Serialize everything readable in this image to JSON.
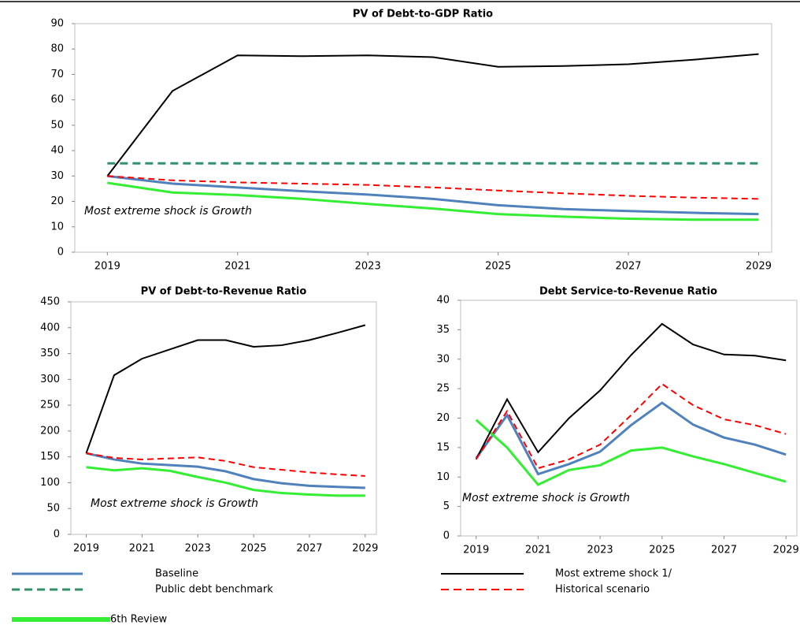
{
  "chart_data": [
    {
      "type": "line",
      "title": "PV of Debt-to-GDP  Ratio",
      "annotation": "Most extreme  shock is Growth",
      "x": [
        2019,
        2020,
        2021,
        2022,
        2023,
        2024,
        2025,
        2026,
        2027,
        2028,
        2029
      ],
      "xlim": [
        2018.5,
        2029.2
      ],
      "xticks": [
        2019,
        2021,
        2023,
        2025,
        2027,
        2029
      ],
      "ylim": [
        0,
        90
      ],
      "yticks": [
        0,
        10,
        20,
        30,
        40,
        50,
        60,
        70,
        80,
        90
      ],
      "series": [
        {
          "name": "Baseline",
          "color": "#4f81bd",
          "linewidth": 3,
          "dashed": false,
          "values": [
            30,
            27,
            25.5,
            24,
            22.7,
            21,
            18.5,
            17,
            16.2,
            15.5,
            15
          ]
        },
        {
          "name": "Public debt benchmark",
          "color": "#31926a",
          "linewidth": 3,
          "dashed": true,
          "values": [
            35,
            35,
            35,
            35,
            35,
            35,
            35,
            35,
            35,
            35,
            35
          ]
        },
        {
          "name": "6th Review",
          "color": "#33ee33",
          "linewidth": 3,
          "dashed": false,
          "values": [
            27.3,
            23.5,
            22.5,
            21,
            19,
            17.2,
            15,
            14,
            13.2,
            12.8,
            12.8
          ]
        },
        {
          "name": "Most extreme shock 1/",
          "color": "#000000",
          "linewidth": 2,
          "dashed": false,
          "values": [
            30,
            63.5,
            77.5,
            77.2,
            77.5,
            76.8,
            73,
            73.3,
            74,
            75.8,
            78
          ]
        },
        {
          "name": "Historical scenario",
          "color": "#ff0000",
          "linewidth": 2,
          "dashed": true,
          "values": [
            30,
            28.3,
            27.5,
            27,
            26.5,
            25.5,
            24.3,
            23.2,
            22.2,
            21.5,
            21
          ]
        }
      ]
    },
    {
      "type": "line",
      "title": "PV of Debt-to-Revenue  Ratio",
      "annotation": "Most extreme  shock is Growth",
      "x": [
        2019,
        2020,
        2021,
        2022,
        2023,
        2024,
        2025,
        2026,
        2027,
        2028,
        2029
      ],
      "xlim": [
        2018.45,
        2029.4
      ],
      "xticks": [
        2019,
        2021,
        2023,
        2025,
        2027,
        2029
      ],
      "ylim": [
        0,
        450
      ],
      "yticks": [
        0,
        50,
        100,
        150,
        200,
        250,
        300,
        350,
        400,
        450
      ],
      "series": [
        {
          "name": "Baseline",
          "color": "#4f81bd",
          "linewidth": 3,
          "dashed": false,
          "values": [
            157,
            145,
            137,
            134,
            131,
            122,
            107,
            99,
            94,
            92,
            90
          ]
        },
        {
          "name": "6th Review",
          "color": "#33ee33",
          "linewidth": 3,
          "dashed": false,
          "values": [
            130,
            124,
            128,
            123,
            111,
            100,
            86,
            80,
            77,
            75,
            75
          ]
        },
        {
          "name": "Most extreme shock 1/",
          "color": "#000000",
          "linewidth": 2,
          "dashed": false,
          "values": [
            157,
            308,
            340,
            358,
            376,
            376,
            363,
            366,
            376,
            390,
            405
          ]
        },
        {
          "name": "Historical scenario",
          "color": "#ff0000",
          "linewidth": 2,
          "dashed": true,
          "values": [
            157,
            148,
            145,
            147,
            149,
            142,
            130,
            125,
            120,
            116,
            113
          ]
        }
      ]
    },
    {
      "type": "line",
      "title": "Debt Service-to-Revenue  Ratio",
      "annotation": "Most extreme  shock is Growth",
      "x": [
        2019,
        2020,
        2021,
        2022,
        2023,
        2024,
        2025,
        2026,
        2027,
        2028,
        2029
      ],
      "xlim": [
        2018.5,
        2029.35
      ],
      "xticks": [
        2019,
        2021,
        2023,
        2025,
        2027,
        2029
      ],
      "ylim": [
        0,
        40
      ],
      "yticks": [
        0,
        5,
        10,
        15,
        20,
        25,
        30,
        35,
        40
      ],
      "series": [
        {
          "name": "Baseline",
          "color": "#4f81bd",
          "linewidth": 3,
          "dashed": false,
          "values": [
            13.2,
            20.5,
            10.5,
            12.2,
            14.3,
            18.8,
            22.6,
            18.9,
            16.7,
            15.5,
            13.8
          ]
        },
        {
          "name": "6th Review",
          "color": "#33ee33",
          "linewidth": 3,
          "dashed": false,
          "values": [
            19.7,
            15,
            8.7,
            11.2,
            12,
            14.5,
            15,
            13.5,
            12.2,
            10.7,
            9.2
          ]
        },
        {
          "name": "Most extreme shock 1/",
          "color": "#000000",
          "linewidth": 2,
          "dashed": false,
          "values": [
            13,
            23.2,
            14.2,
            20,
            24.7,
            30.7,
            36,
            32.5,
            30.8,
            30.6,
            29.8
          ]
        },
        {
          "name": "Historical scenario",
          "color": "#ff0000",
          "linewidth": 2,
          "dashed": true,
          "values": [
            13,
            21.2,
            11.5,
            13,
            15.5,
            20.5,
            25.8,
            22.2,
            19.8,
            18.8,
            17.3
          ]
        }
      ]
    }
  ]
}
